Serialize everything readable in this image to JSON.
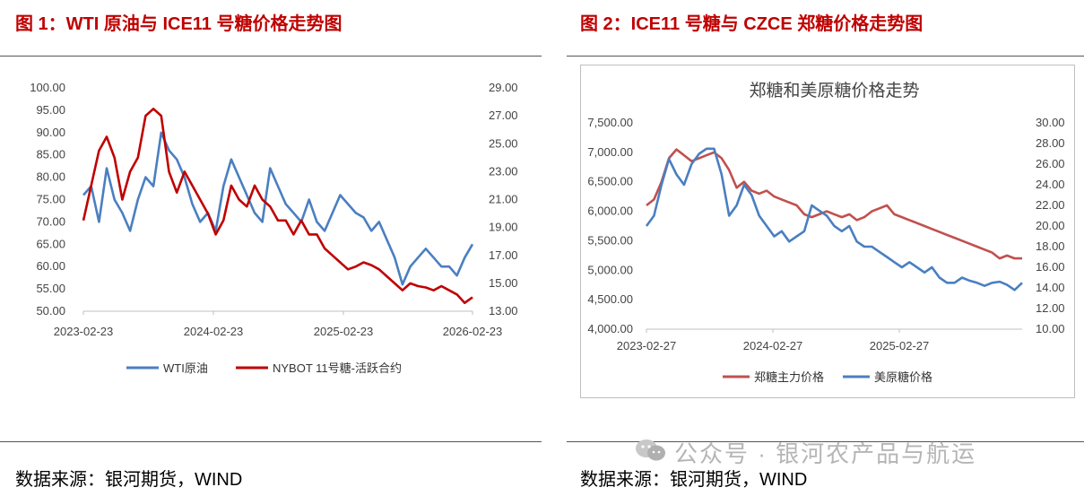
{
  "figures": [
    {
      "title": "图 1：WTI 原油与 ICE11 号糖价格走势图",
      "source": "数据来源：银河期货，WIND"
    },
    {
      "title": "图 2：ICE11 号糖与 CZCE 郑糖价格走势图",
      "source": "数据来源：银河期货，WIND"
    }
  ],
  "watermark": {
    "text": "公众号 · 银河农产品与航运",
    "icon": "wechat-icon"
  },
  "colors": {
    "title_red": "#c00000",
    "blue": "#4a7fc1",
    "red": "#c00000",
    "red2": "#c0504d"
  },
  "chart_data": [
    {
      "type": "line",
      "title": "",
      "x_ticks": [
        "2023-02-23",
        "2024-02-23",
        "2025-02-23",
        "2026-02-23"
      ],
      "y_left": {
        "ylim": [
          50,
          100
        ],
        "ticks": [
          "100.00",
          "95.00",
          "90.00",
          "85.00",
          "80.00",
          "75.00",
          "70.00",
          "65.00",
          "60.00",
          "55.00",
          "50.00"
        ]
      },
      "y_right": {
        "ylim": [
          13,
          29
        ],
        "ticks": [
          "29.00",
          "27.00",
          "25.00",
          "23.00",
          "21.00",
          "19.00",
          "17.00",
          "15.00",
          "13.00"
        ]
      },
      "series": [
        {
          "name": "WTI原油",
          "axis": "left",
          "color": "#4a7fc1",
          "x": [
            0,
            0.02,
            0.04,
            0.06,
            0.08,
            0.1,
            0.12,
            0.14,
            0.16,
            0.18,
            0.2,
            0.22,
            0.24,
            0.26,
            0.28,
            0.3,
            0.32,
            0.34,
            0.36,
            0.38,
            0.4,
            0.42,
            0.44,
            0.46,
            0.48,
            0.5,
            0.52,
            0.54,
            0.56,
            0.58,
            0.6,
            0.62,
            0.64,
            0.66,
            0.68,
            0.7,
            0.72,
            0.74,
            0.76,
            0.78,
            0.8,
            0.82,
            0.84,
            0.86,
            0.88,
            0.9,
            0.92,
            0.94,
            0.96,
            0.98,
            1.0
          ],
          "values": [
            76,
            78,
            70,
            82,
            75,
            72,
            68,
            75,
            80,
            78,
            90,
            86,
            84,
            80,
            74,
            70,
            72,
            68,
            78,
            84,
            80,
            76,
            72,
            70,
            82,
            78,
            74,
            72,
            70,
            75,
            70,
            68,
            72,
            76,
            74,
            72,
            71,
            68,
            70,
            66,
            62,
            56,
            60,
            62,
            64,
            62,
            60,
            60,
            58,
            62,
            65
          ]
        },
        {
          "name": "NYBOT 11号糖-活跃合约",
          "axis": "right",
          "color": "#c00000",
          "x": [
            0,
            0.02,
            0.04,
            0.06,
            0.08,
            0.1,
            0.12,
            0.14,
            0.16,
            0.18,
            0.2,
            0.22,
            0.24,
            0.26,
            0.28,
            0.3,
            0.32,
            0.34,
            0.36,
            0.38,
            0.4,
            0.42,
            0.44,
            0.46,
            0.48,
            0.5,
            0.52,
            0.54,
            0.56,
            0.58,
            0.6,
            0.62,
            0.64,
            0.66,
            0.68,
            0.7,
            0.72,
            0.74,
            0.76,
            0.78,
            0.8,
            0.82,
            0.84,
            0.86,
            0.88,
            0.9,
            0.92,
            0.94,
            0.96,
            0.98,
            1.0
          ],
          "values": [
            19.5,
            22,
            24.5,
            25.5,
            24,
            21,
            23,
            24,
            27,
            27.5,
            27,
            23,
            21.5,
            23,
            22,
            21,
            20,
            18.5,
            19.5,
            22,
            21,
            20.5,
            22,
            21,
            20.5,
            19.5,
            19.5,
            18.5,
            19.5,
            18.5,
            18.5,
            17.5,
            17,
            16.5,
            16,
            16.2,
            16.5,
            16.3,
            16,
            15.5,
            15,
            14.5,
            15,
            14.8,
            14.7,
            14.5,
            14.8,
            14.5,
            14.2,
            13.6,
            14.0
          ]
        }
      ]
    },
    {
      "type": "line",
      "title": "郑糖和美原糖价格走势",
      "x_ticks": [
        "2023-02-27",
        "2024-02-27",
        "2025-02-27"
      ],
      "y_left": {
        "ylim": [
          4000,
          7500
        ],
        "ticks": [
          "7,500.00",
          "7,000.00",
          "6,500.00",
          "6,000.00",
          "5,500.00",
          "5,000.00",
          "4,500.00",
          "4,000.00"
        ]
      },
      "y_right": {
        "ylim": [
          10,
          30
        ],
        "ticks": [
          "30.00",
          "28.00",
          "26.00",
          "24.00",
          "22.00",
          "20.00",
          "18.00",
          "16.00",
          "14.00",
          "12.00",
          "10.00"
        ]
      },
      "series": [
        {
          "name": "郑糖主力价格",
          "axis": "left",
          "color": "#c0504d",
          "x": [
            0,
            0.02,
            0.04,
            0.06,
            0.08,
            0.1,
            0.12,
            0.14,
            0.16,
            0.18,
            0.2,
            0.22,
            0.24,
            0.26,
            0.28,
            0.3,
            0.32,
            0.34,
            0.36,
            0.38,
            0.4,
            0.42,
            0.44,
            0.46,
            0.48,
            0.5,
            0.52,
            0.54,
            0.56,
            0.58,
            0.6,
            0.62,
            0.64,
            0.66,
            0.68,
            0.7,
            0.72,
            0.74,
            0.76,
            0.78,
            0.8,
            0.82,
            0.84,
            0.86,
            0.88,
            0.9,
            0.92,
            0.94,
            0.96,
            0.98,
            1.0
          ],
          "values": [
            6100,
            6200,
            6500,
            6900,
            7050,
            6950,
            6850,
            6900,
            6950,
            7000,
            6900,
            6700,
            6400,
            6500,
            6350,
            6300,
            6350,
            6250,
            6200,
            6150,
            6100,
            5950,
            5900,
            5950,
            6000,
            5950,
            5900,
            5950,
            5850,
            5900,
            6000,
            6050,
            6100,
            5950,
            5900,
            5850,
            5800,
            5750,
            5700,
            5650,
            5600,
            5550,
            5500,
            5450,
            5400,
            5350,
            5300,
            5200,
            5250,
            5200,
            5200
          ]
        },
        {
          "name": "美原糖价格",
          "axis": "right",
          "color": "#4a7fc1",
          "x": [
            0,
            0.02,
            0.04,
            0.06,
            0.08,
            0.1,
            0.12,
            0.14,
            0.16,
            0.18,
            0.2,
            0.22,
            0.24,
            0.26,
            0.28,
            0.3,
            0.32,
            0.34,
            0.36,
            0.38,
            0.4,
            0.42,
            0.44,
            0.46,
            0.48,
            0.5,
            0.52,
            0.54,
            0.56,
            0.58,
            0.6,
            0.62,
            0.64,
            0.66,
            0.68,
            0.7,
            0.72,
            0.74,
            0.76,
            0.78,
            0.8,
            0.82,
            0.84,
            0.86,
            0.88,
            0.9,
            0.92,
            0.94,
            0.96,
            0.98,
            1.0
          ],
          "values": [
            20,
            21,
            24,
            26.5,
            25,
            24,
            26,
            27,
            27.5,
            27.5,
            25,
            21,
            22,
            24,
            23,
            21,
            20,
            19,
            19.5,
            18.5,
            19,
            19.5,
            22,
            21.5,
            21,
            20,
            19.5,
            20,
            18.5,
            18,
            18,
            17.5,
            17,
            16.5,
            16,
            16.5,
            16,
            15.5,
            16,
            15,
            14.5,
            14.5,
            15,
            14.7,
            14.5,
            14.2,
            14.5,
            14.6,
            14.3,
            13.8,
            14.5
          ]
        }
      ]
    }
  ]
}
